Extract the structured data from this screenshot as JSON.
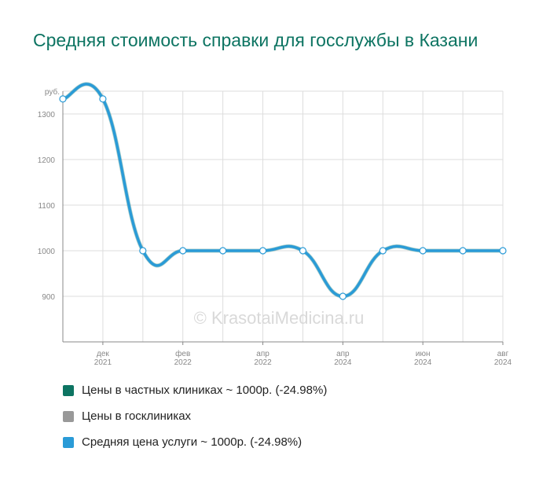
{
  "chart_data": {
    "type": "line",
    "title": "Средняя стоимость справки для госслужбы в Казани",
    "ylabel": "руб.",
    "ylim": [
      800,
      1350
    ],
    "yticks": [
      900,
      1000,
      1100,
      1200,
      1300
    ],
    "grid": true,
    "x_tick_labels": [
      {
        "month": "дек",
        "year": "2021",
        "index": 1
      },
      {
        "month": "фев",
        "year": "2022",
        "index": 3
      },
      {
        "month": "апр",
        "year": "2022",
        "index": 5
      },
      {
        "month": "апр",
        "year": "2024",
        "index": 7
      },
      {
        "month": "июн",
        "year": "2024",
        "index": 9
      },
      {
        "month": "авг",
        "year": "2024",
        "index": 11
      }
    ],
    "series": [
      {
        "name": "Цены в частных клиниках ~ 1000р. (-24.98%)",
        "color": "#0d7462",
        "values": [
          1333,
          1333,
          1000,
          1000,
          1000,
          1000,
          1000,
          900,
          1000,
          1000,
          1000,
          1000
        ]
      },
      {
        "name": "Цены в госклиниках",
        "color": "#999999",
        "values": []
      },
      {
        "name": "Средняя цена услуги ~ 1000р. (-24.98%)",
        "color": "#2a9bd7",
        "values": [
          1333,
          1333,
          1000,
          1000,
          1000,
          1000,
          1000,
          900,
          1000,
          1000,
          1000,
          1000
        ]
      }
    ],
    "watermark": "© KrasotaiMedicina.ru",
    "legend_position": "bottom-left"
  }
}
